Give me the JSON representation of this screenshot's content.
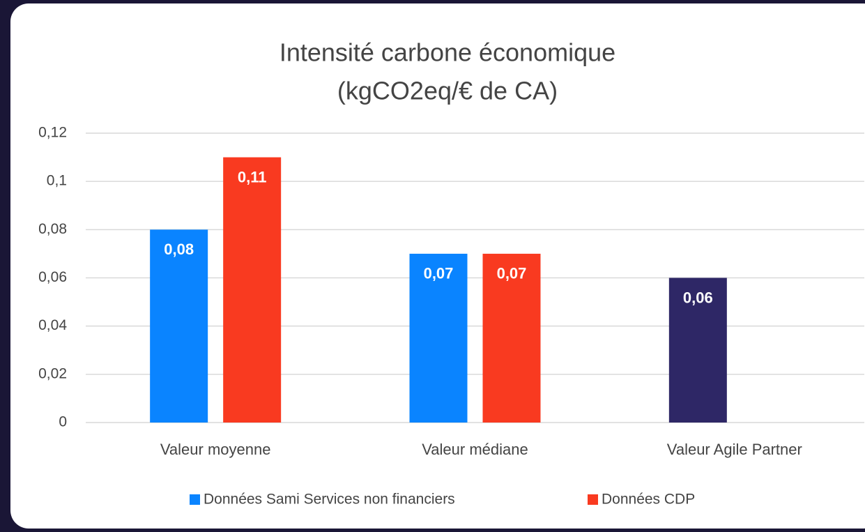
{
  "chart_data": {
    "type": "bar",
    "title": [
      "Intensité carbone économique",
      "(kgCO2eq/€ de CA)"
    ],
    "categories": [
      "Valeur moyenne",
      "Valeur médiane",
      "Valeur Agile Partner"
    ],
    "series": [
      {
        "name": "Données Sami Services non financiers",
        "color": "#0a84ff",
        "point_colors": [
          "#0a84ff",
          "#0a84ff",
          "#2e2766"
        ],
        "values": [
          0.08,
          0.07,
          0.06
        ],
        "value_labels": [
          "0,08",
          "0,07",
          "0,06"
        ]
      },
      {
        "name": "Données CDP",
        "color": "#f93a20",
        "values": [
          0.11,
          0.07,
          null
        ],
        "value_labels": [
          "0,11",
          "0,07",
          null
        ]
      }
    ],
    "ylim": [
      0,
      0.12
    ],
    "yticks": [
      0,
      {
        "value": 0.02,
        "label": "0,02"
      },
      {
        "value": 0.04,
        "label": "0,04"
      },
      {
        "value": 0.06,
        "label": "0,06"
      },
      {
        "value": 0.08,
        "label": "0,08"
      },
      {
        "value": 0.1,
        "label": "0,1"
      },
      {
        "value": 0.12,
        "label": "0,12"
      }
    ],
    "grid": true,
    "legend": "bottom"
  }
}
